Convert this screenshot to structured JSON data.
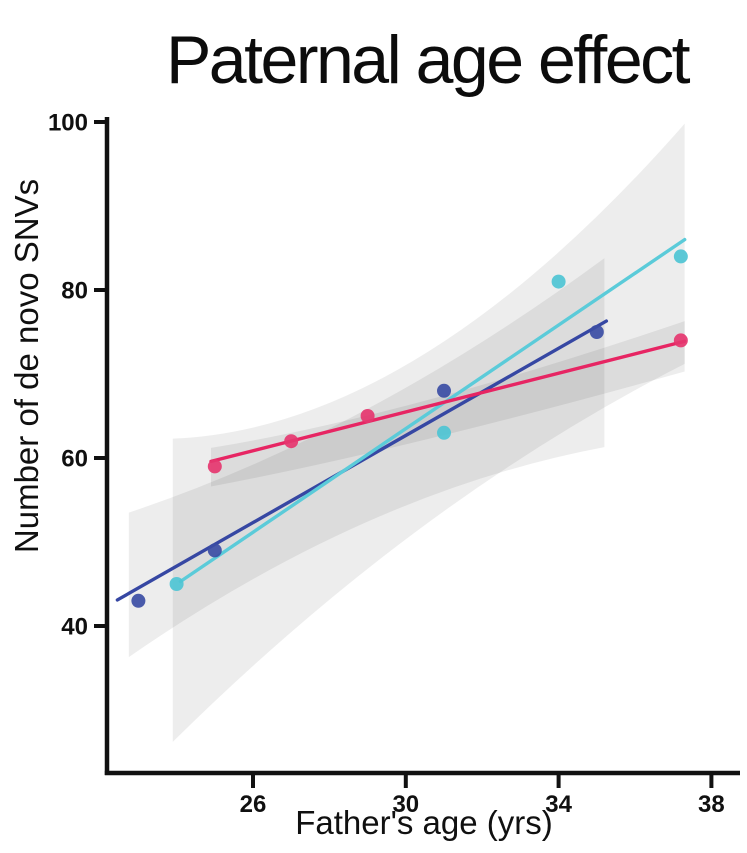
{
  "page": {
    "background": "#ffffff"
  },
  "chart_data": {
    "type": "scatter",
    "title": "Paternal age effect",
    "xlabel": "Father's age (yrs)",
    "ylabel": "Number of de novo SNVs",
    "x_ticks": [
      26,
      30,
      34,
      38
    ],
    "y_ticks": [
      40,
      60,
      80,
      100
    ],
    "xlim": [
      22.2,
      38.9
    ],
    "ylim": [
      22.5,
      100
    ],
    "grid": false,
    "legend": "none",
    "axis_color": "#111111",
    "band_color": "rgba(0,0,0,0.07)",
    "series": [
      {
        "name": "dark-blue",
        "color": "#3B4DA4",
        "line_color": "#3647A3",
        "points": [
          [
            23,
            43
          ],
          [
            25,
            49
          ],
          [
            31,
            68
          ],
          [
            35,
            75
          ]
        ],
        "trend": [
          [
            22.45,
            43.1
          ],
          [
            35.25,
            76.3
          ]
        ],
        "ci_upper": [
          [
            22.75,
            53.5
          ],
          [
            29,
            63
          ],
          [
            35.2,
            83.8
          ]
        ],
        "ci_lower": [
          [
            35.2,
            61.3
          ],
          [
            29,
            56
          ],
          [
            22.75,
            36.3
          ]
        ]
      },
      {
        "name": "cyan",
        "color": "#4EC4D4",
        "line_color": "#5BCBD9",
        "points": [
          [
            24,
            45
          ],
          [
            31,
            63
          ],
          [
            34,
            81
          ],
          [
            37.2,
            84
          ]
        ],
        "trend": [
          [
            24.1,
            45.3
          ],
          [
            37.3,
            86.0
          ]
        ],
        "ci_upper": [
          [
            23.9,
            62.3
          ],
          [
            30.3,
            63.5
          ],
          [
            37.3,
            99.8
          ]
        ],
        "ci_lower": [
          [
            37.3,
            71.2
          ],
          [
            30.3,
            55
          ],
          [
            23.9,
            26.2
          ]
        ]
      },
      {
        "name": "pink",
        "color": "#E5366F",
        "line_color": "#E72563",
        "points": [
          [
            25,
            59
          ],
          [
            27,
            62
          ],
          [
            29,
            65
          ],
          [
            37.2,
            74
          ]
        ],
        "trend": [
          [
            24.9,
            59.6
          ],
          [
            37.3,
            73.9
          ]
        ],
        "ci_upper": [
          [
            24.9,
            61.2
          ],
          [
            30,
            65
          ],
          [
            37.3,
            76.3
          ]
        ],
        "ci_lower": [
          [
            37.3,
            70.3
          ],
          [
            30,
            61
          ],
          [
            24.9,
            56.6
          ]
        ]
      }
    ]
  }
}
